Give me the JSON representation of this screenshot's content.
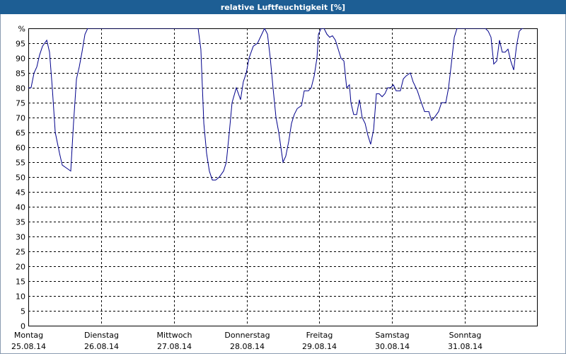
{
  "chart_data": {
    "type": "line",
    "title": "relative Luftfeuchtigkeit [%]",
    "x": [
      0,
      0.9,
      1.9,
      2.8,
      3.7,
      4.7,
      6.1,
      7,
      7.9,
      8.9,
      10.3,
      11.2,
      12.6,
      14,
      14.9,
      15.9,
      16.8,
      17.7,
      18.7,
      19.6,
      56,
      56.9,
      57.9,
      58.8,
      59.7,
      60.7,
      61.8,
      63,
      64.4,
      65.3,
      66.3,
      67.2,
      68.6,
      70,
      70.9,
      71.9,
      72.8,
      74.2,
      75.6,
      77,
      77.9,
      78.9,
      79.8,
      80.7,
      81.7,
      82.6,
      84,
      84.9,
      85.9,
      86.8,
      87.7,
      88.7,
      90.1,
      91,
      92.4,
      93.3,
      94.3,
      95.2,
      95.7,
      96.6,
      97.5,
      98.5,
      99.4,
      100.3,
      101.3,
      102.2,
      103.1,
      104.1,
      105,
      105.9,
      106.4,
      107.3,
      108.3,
      109.2,
      110.1,
      111.1,
      112,
      112.9,
      113.9,
      114.8,
      115.7,
      116.7,
      117.6,
      118.5,
      119.5,
      120.4,
      121.3,
      122.7,
      123.7,
      124.6,
      126,
      126.9,
      128.3,
      129.3,
      130.7,
      132.1,
      133,
      133.9,
      135.3,
      136.3,
      137.7,
      138.6,
      139.5,
      140.5,
      141.4,
      143.7,
      150.7,
      151.7,
      152.6,
      153.5,
      154.5,
      155.4,
      156.3,
      157.3,
      158.2,
      159.1,
      160.1,
      161,
      161.9,
      162.9,
      163.3
    ],
    "series": [
      {
        "name": "relative Luftfeuchtigkeit",
        "color": "#00008b",
        "values": [
          80,
          80,
          85,
          87,
          91,
          94,
          96,
          92,
          80,
          65,
          58,
          54,
          53,
          52,
          68,
          83,
          87,
          92,
          98,
          100,
          100,
          93,
          68,
          58,
          52,
          49,
          49,
          50,
          52,
          55,
          65,
          75,
          80,
          76,
          82,
          85,
          90,
          94,
          95,
          98,
          100,
          98,
          90,
          80,
          70,
          65,
          55,
          57,
          62,
          68,
          71,
          73,
          74,
          79,
          79,
          80,
          84,
          90,
          98,
          100,
          100,
          98,
          97,
          97.5,
          96,
          93,
          90,
          89,
          80,
          81,
          75,
          71,
          71,
          76,
          70,
          68,
          64,
          61,
          66,
          78,
          78,
          77,
          78,
          80,
          80,
          81,
          79,
          79,
          83,
          84,
          85,
          82,
          79,
          76,
          72,
          72,
          69,
          70,
          72,
          75,
          75,
          80,
          88,
          97,
          100,
          100,
          100,
          99,
          97,
          88,
          89,
          96,
          92,
          92,
          93,
          89,
          86,
          94,
          99,
          100,
          100
        ]
      }
    ],
    "xlim": [
      0,
      168
    ],
    "xticks": [
      {
        "value": 0,
        "label": "Montag"
      },
      {
        "value": 24,
        "label": "Dienstag"
      },
      {
        "value": 48,
        "label": "Mittwoch"
      },
      {
        "value": 72,
        "label": "Donnerstag"
      },
      {
        "value": 96,
        "label": "Freitag"
      },
      {
        "value": 120,
        "label": "Samstag"
      },
      {
        "value": 144,
        "label": "Sonntag"
      }
    ],
    "xtick_dates": [
      "25.08.14",
      "26.08.14",
      "27.08.14",
      "28.08.14",
      "29.08.14",
      "30.08.14",
      "31.08.14"
    ],
    "ylim": [
      0,
      100
    ],
    "yticks": [
      0,
      5,
      10,
      15,
      20,
      25,
      30,
      35,
      40,
      45,
      50,
      55,
      60,
      65,
      70,
      75,
      80,
      85,
      90,
      95,
      {
        "value": 100,
        "label": "%"
      }
    ],
    "grid": true
  }
}
